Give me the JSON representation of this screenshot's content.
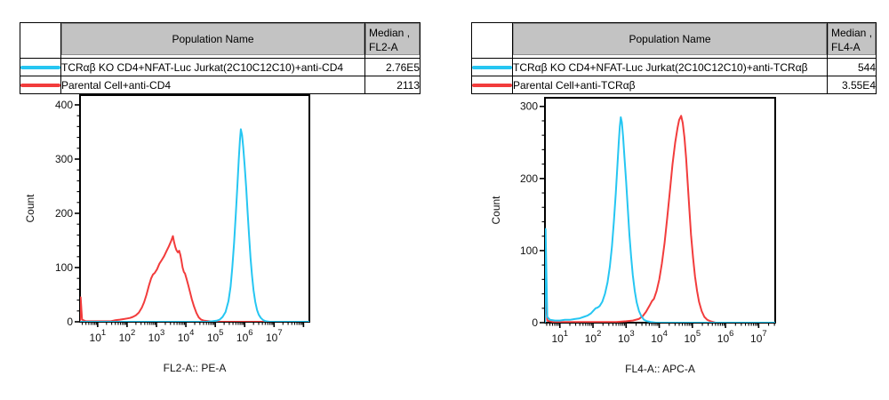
{
  "colors": {
    "cyan": "#26c6f2",
    "red": "#f23c3c"
  },
  "tables": [
    {
      "population_header": "Population Name",
      "median_header_line1": "Median ,",
      "median_header_line2": "FL2-A",
      "rows": [
        {
          "color": "#26c6f2",
          "name": "TCRαβ KO CD4+NFAT-Luc Jurkat(2C10C12C10)+anti-CD4",
          "median": "2.76E5"
        },
        {
          "color": "#f23c3c",
          "name": "Parental Cell+anti-CD4",
          "median": "2113"
        }
      ]
    },
    {
      "population_header": "Population Name",
      "median_header_line1": "Median ,",
      "median_header_line2": "FL4-A",
      "rows": [
        {
          "color": "#26c6f2",
          "name": "TCRαβ KO CD4+NFAT-Luc Jurkat(2C10C12C10)+anti-TCRαβ",
          "median": "544"
        },
        {
          "color": "#f23c3c",
          "name": "Parental Cell+anti-TCRαβ",
          "median": "3.55E4"
        }
      ]
    }
  ],
  "chart_data": [
    {
      "type": "line",
      "title": "",
      "xlabel": "FL2-A:: PE-A",
      "ylabel": "Count",
      "x_scale": "log10",
      "xlim_log": [
        0.4,
        8.2
      ],
      "x_decades": [
        1,
        2,
        3,
        4,
        5,
        6,
        7
      ],
      "ylim": [
        0,
        418
      ],
      "yticks": [
        0,
        100,
        200,
        300,
        400
      ],
      "y_minor_step": 20,
      "grid": false,
      "legend": "none",
      "series": [
        {
          "id": "parental-anti-cd4",
          "name": "Parental Cell+anti-CD4",
          "color": "#f23c3c",
          "median": 2113,
          "points": [
            [
              0.4,
              0
            ],
            [
              0.42,
              45
            ],
            [
              0.47,
              4
            ],
            [
              0.6,
              1
            ],
            [
              0.9,
              1
            ],
            [
              1.2,
              1
            ],
            [
              1.45,
              1
            ],
            [
              1.6,
              3
            ],
            [
              1.75,
              4
            ],
            [
              1.9,
              5
            ],
            [
              2.0,
              6
            ],
            [
              2.1,
              7
            ],
            [
              2.2,
              9
            ],
            [
              2.3,
              12
            ],
            [
              2.4,
              17
            ],
            [
              2.5,
              26
            ],
            [
              2.58,
              36
            ],
            [
              2.66,
              50
            ],
            [
              2.74,
              66
            ],
            [
              2.82,
              80
            ],
            [
              2.88,
              87
            ],
            [
              2.94,
              90
            ],
            [
              3.02,
              97
            ],
            [
              3.1,
              107
            ],
            [
              3.18,
              114
            ],
            [
              3.26,
              121
            ],
            [
              3.34,
              130
            ],
            [
              3.42,
              139
            ],
            [
              3.5,
              149
            ],
            [
              3.56,
              158
            ],
            [
              3.6,
              147
            ],
            [
              3.64,
              138
            ],
            [
              3.68,
              132
            ],
            [
              3.73,
              128
            ],
            [
              3.77,
              131
            ],
            [
              3.81,
              124
            ],
            [
              3.85,
              113
            ],
            [
              3.89,
              100
            ],
            [
              3.93,
              92
            ],
            [
              3.97,
              89
            ],
            [
              4.02,
              80
            ],
            [
              4.08,
              68
            ],
            [
              4.14,
              55
            ],
            [
              4.2,
              42
            ],
            [
              4.28,
              28
            ],
            [
              4.36,
              16
            ],
            [
              4.44,
              8
            ],
            [
              4.52,
              4
            ],
            [
              4.62,
              2
            ],
            [
              4.8,
              1
            ],
            [
              5.0,
              0
            ],
            [
              8.2,
              0
            ]
          ]
        },
        {
          "id": "ko-anti-cd4",
          "name": "TCRαβ KO CD4+NFAT-Luc Jurkat(2C10C12C10)+anti-CD4",
          "color": "#26c6f2",
          "median": 276000,
          "points": [
            [
              0.4,
              0
            ],
            [
              4.7,
              0
            ],
            [
              4.9,
              1
            ],
            [
              5.05,
              2
            ],
            [
              5.15,
              4
            ],
            [
              5.25,
              9
            ],
            [
              5.35,
              18
            ],
            [
              5.45,
              38
            ],
            [
              5.52,
              65
            ],
            [
              5.58,
              100
            ],
            [
              5.64,
              145
            ],
            [
              5.7,
              200
            ],
            [
              5.75,
              250
            ],
            [
              5.8,
              300
            ],
            [
              5.84,
              335
            ],
            [
              5.87,
              355
            ],
            [
              5.91,
              344
            ],
            [
              5.95,
              322
            ],
            [
              6.0,
              288
            ],
            [
              6.05,
              248
            ],
            [
              6.1,
              203
            ],
            [
              6.15,
              158
            ],
            [
              6.2,
              118
            ],
            [
              6.25,
              85
            ],
            [
              6.3,
              58
            ],
            [
              6.36,
              37
            ],
            [
              6.42,
              22
            ],
            [
              6.48,
              13
            ],
            [
              6.55,
              7
            ],
            [
              6.63,
              3
            ],
            [
              6.72,
              1
            ],
            [
              6.85,
              0
            ],
            [
              8.2,
              0
            ]
          ]
        }
      ]
    },
    {
      "type": "line",
      "title": "",
      "xlabel": "FL4-A:: APC-A",
      "ylabel": "Count",
      "x_scale": "log10",
      "xlim_log": [
        0.55,
        7.5
      ],
      "x_decades": [
        1,
        2,
        3,
        4,
        5,
        6,
        7
      ],
      "ylim": [
        0,
        312
      ],
      "yticks": [
        0,
        100,
        200,
        300
      ],
      "y_minor_step": 20,
      "grid": false,
      "legend": "none",
      "series": [
        {
          "id": "parental-anti-tcrab",
          "name": "Parental Cell+anti-TCRαβ",
          "color": "#f23c3c",
          "median": 35500,
          "points": [
            [
              0.55,
              0
            ],
            [
              0.57,
              50
            ],
            [
              0.62,
              3
            ],
            [
              0.8,
              1
            ],
            [
              1.5,
              1
            ],
            [
              2.2,
              1
            ],
            [
              2.7,
              1
            ],
            [
              3.0,
              2
            ],
            [
              3.2,
              3
            ],
            [
              3.38,
              5
            ],
            [
              3.5,
              9
            ],
            [
              3.6,
              15
            ],
            [
              3.7,
              23
            ],
            [
              3.78,
              30
            ],
            [
              3.84,
              33
            ],
            [
              3.92,
              44
            ],
            [
              4.0,
              60
            ],
            [
              4.08,
              82
            ],
            [
              4.16,
              110
            ],
            [
              4.24,
              145
            ],
            [
              4.32,
              182
            ],
            [
              4.4,
              220
            ],
            [
              4.48,
              250
            ],
            [
              4.55,
              270
            ],
            [
              4.6,
              281
            ],
            [
              4.66,
              287
            ],
            [
              4.71,
              277
            ],
            [
              4.76,
              257
            ],
            [
              4.81,
              228
            ],
            [
              4.86,
              193
            ],
            [
              4.91,
              156
            ],
            [
              4.96,
              122
            ],
            [
              5.02,
              90
            ],
            [
              5.08,
              64
            ],
            [
              5.14,
              44
            ],
            [
              5.2,
              29
            ],
            [
              5.28,
              16
            ],
            [
              5.36,
              8
            ],
            [
              5.45,
              4
            ],
            [
              5.55,
              2
            ],
            [
              5.7,
              0
            ],
            [
              7.5,
              0
            ]
          ]
        },
        {
          "id": "ko-anti-tcrab",
          "name": "TCRαβ KO CD4+NFAT-Luc Jurkat(2C10C12C10)+anti-TCRαβ",
          "color": "#26c6f2",
          "median": 544,
          "points": [
            [
              0.55,
              0
            ],
            [
              0.57,
              130
            ],
            [
              0.62,
              8
            ],
            [
              0.7,
              4
            ],
            [
              0.85,
              3
            ],
            [
              1.0,
              3
            ],
            [
              1.15,
              4
            ],
            [
              1.3,
              4
            ],
            [
              1.45,
              5
            ],
            [
              1.6,
              6
            ],
            [
              1.72,
              8
            ],
            [
              1.84,
              10
            ],
            [
              1.94,
              13
            ],
            [
              2.02,
              17
            ],
            [
              2.08,
              20
            ],
            [
              2.14,
              21
            ],
            [
              2.2,
              23
            ],
            [
              2.28,
              29
            ],
            [
              2.36,
              40
            ],
            [
              2.44,
              56
            ],
            [
              2.51,
              78
            ],
            [
              2.57,
              105
            ],
            [
              2.63,
              140
            ],
            [
              2.69,
              180
            ],
            [
              2.74,
              220
            ],
            [
              2.78,
              252
            ],
            [
              2.81,
              272
            ],
            [
              2.84,
              285
            ],
            [
              2.87,
              278
            ],
            [
              2.91,
              258
            ],
            [
              2.95,
              230
            ],
            [
              3.0,
              196
            ],
            [
              3.05,
              158
            ],
            [
              3.1,
              122
            ],
            [
              3.15,
              92
            ],
            [
              3.2,
              66
            ],
            [
              3.26,
              44
            ],
            [
              3.32,
              28
            ],
            [
              3.39,
              16
            ],
            [
              3.46,
              9
            ],
            [
              3.54,
              4
            ],
            [
              3.63,
              2
            ],
            [
              3.75,
              1
            ],
            [
              3.9,
              0
            ],
            [
              7.5,
              0
            ]
          ]
        }
      ]
    }
  ]
}
